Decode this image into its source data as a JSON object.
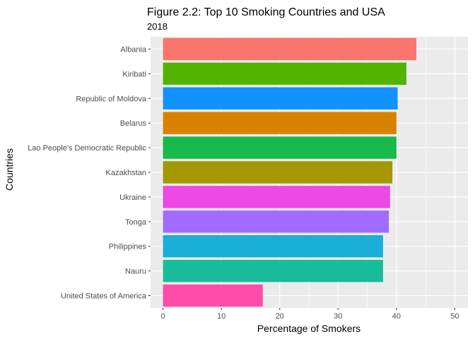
{
  "chart_data": {
    "type": "bar",
    "orientation": "horizontal",
    "title": "Figure 2.2: Top 10 Smoking Countries and USA",
    "subtitle": "2018",
    "xlabel": "Percentage of Smokers",
    "ylabel": "Countries",
    "xlim": [
      0,
      50
    ],
    "x_ticks": [
      "0",
      "10",
      "20",
      "30",
      "40",
      "50"
    ],
    "grid": true,
    "legend": "none",
    "categories": [
      "Albania",
      "Kiribati",
      "Republic of Moldova",
      "Belarus",
      "Lao People's Democratic Republic",
      "Kazakhstan",
      "Ukraine",
      "Tonga",
      "Philippines",
      "Nauru",
      "United States of America"
    ],
    "values": [
      43.4,
      41.7,
      40.2,
      40.0,
      40.0,
      39.3,
      38.9,
      38.7,
      37.7,
      37.7,
      17.1
    ],
    "colors": [
      "#F8766D",
      "#53B400",
      "#1192FF",
      "#D98200",
      "#18BA4C",
      "#A49700",
      "#EC49E6",
      "#A16CFF",
      "#1AAFD8",
      "#18BC9A",
      "#FF4CA8"
    ],
    "panel_background": "#EBEBEB",
    "gridline_color": "#FFFFFF"
  }
}
